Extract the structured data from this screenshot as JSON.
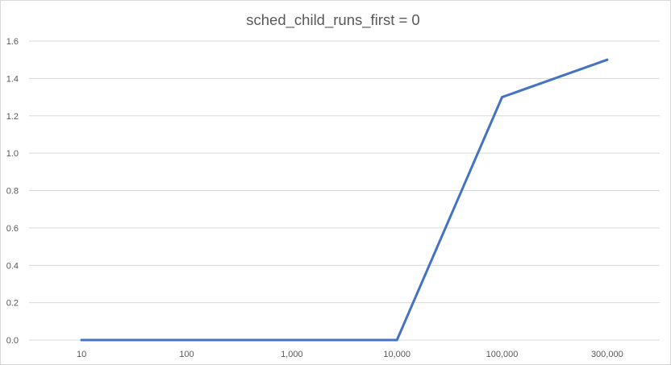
{
  "chart_data": {
    "type": "line",
    "title": "sched_child_runs_first = 0",
    "xlabel": "",
    "ylabel": "",
    "categories": [
      "10",
      "100",
      "1,000",
      "10,000",
      "100,000",
      "300,000"
    ],
    "series": [
      {
        "values": [
          0.0,
          0.0,
          0.0,
          0.0,
          1.3,
          1.5
        ]
      }
    ],
    "ylim": [
      0,
      1.6
    ],
    "yticks": [
      "0.0",
      "0.2",
      "0.4",
      "0.6",
      "0.8",
      "1.0",
      "1.2",
      "1.4",
      "1.6"
    ],
    "grid": true,
    "legend": "none",
    "colors": {
      "line": "#4472c4",
      "grid": "#d9d9d9",
      "text": "#595959"
    }
  }
}
